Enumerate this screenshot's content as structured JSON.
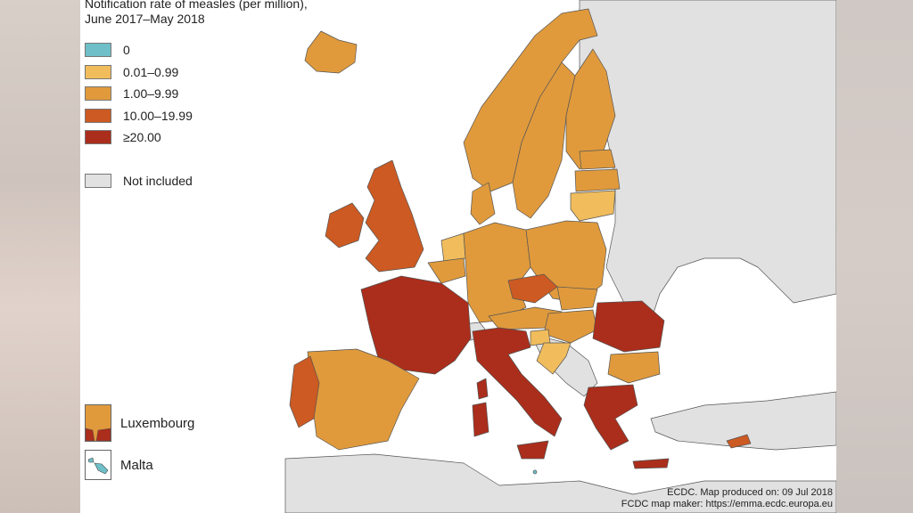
{
  "title_line1": "Notification rate of measles (per million),",
  "title_line2": "June 2017–May 2018",
  "colors": {
    "zero": "#6fbfc9",
    "low": "#f0bc5c",
    "mid": "#e09a3c",
    "high": "#cc5a22",
    "veryhigh": "#ab2d1b",
    "not_included": "#e1e1e1",
    "sea": "#ffffff",
    "border": "#555555"
  },
  "legend": [
    {
      "label": "0",
      "color": "#6fbfc9"
    },
    {
      "label": "0.01–0.99",
      "color": "#f0bc5c"
    },
    {
      "label": "1.00–9.99",
      "color": "#e09a3c"
    },
    {
      "label": "10.00–19.99",
      "color": "#cc5a22"
    },
    {
      "label": "≥20.00",
      "color": "#ab2d1b"
    }
  ],
  "legend_not_included": {
    "label": "Not included",
    "color": "#e1e1e1"
  },
  "insets": {
    "luxembourg": "Luxembourg",
    "malta": "Malta"
  },
  "credits": {
    "line1": "ECDC. Map produced on: 09 Jul 2018",
    "line2": "FCDC map maker: https://emma.ecdc.europa.eu"
  }
}
